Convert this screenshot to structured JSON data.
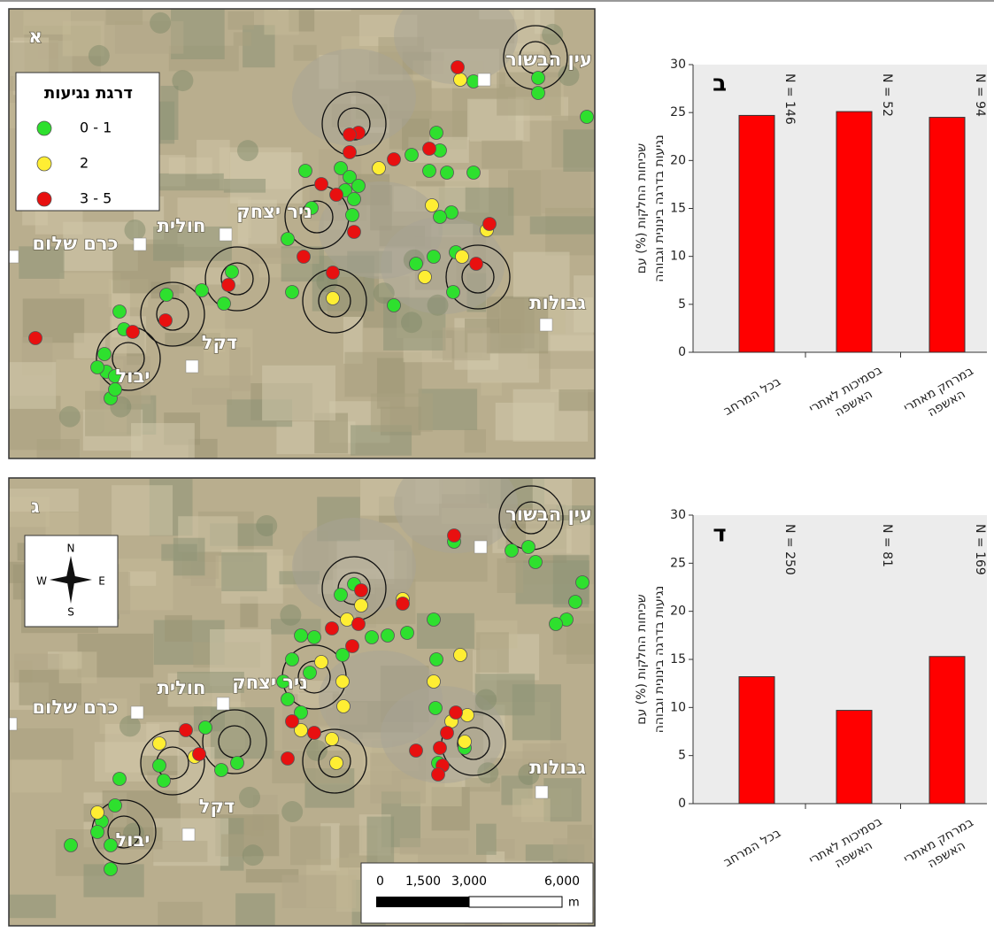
{
  "maps": [
    {
      "panel_label": "א",
      "legend": {
        "title": "דרגת נגיעות",
        "items": [
          {
            "label": "0 - 1",
            "color": "#2ee02e"
          },
          {
            "label": "2",
            "color": "#ffee33"
          },
          {
            "label": "3 - 5",
            "color": "#e81010"
          }
        ]
      },
      "places": [
        "עין הבשור",
        "ניר יצחק",
        "חולית",
        "כרם שלום",
        "גבולות",
        "דקל",
        "יבול"
      ]
    },
    {
      "panel_label": "ג",
      "compass": [
        "N",
        "W",
        "E",
        "S"
      ],
      "scale_bar": {
        "ticks": [
          "0",
          "1,500",
          "3,000",
          "6,000"
        ],
        "unit": "m"
      },
      "places": [
        "עין הבשור",
        "ניר יצחק",
        "חולית",
        "כרם שלום",
        "גבולות",
        "דקל",
        "יבול"
      ]
    }
  ],
  "chart_data": [
    {
      "type": "bar",
      "panel_label": "ב",
      "y_label": "שכיחות החלקות (%) עם\nנגיעות בדרגה בינונית וגבוהה",
      "categories": [
        "בכל המרחב",
        "בסמיכות לאתרי\nהאשפה",
        "במרחק מאתרי\nהאשפה"
      ],
      "values": [
        24.7,
        25.1,
        24.5
      ],
      "annotations": [
        "N = 146",
        "N = 52",
        "N = 94"
      ],
      "color": "#ff0000",
      "ylim": [
        0,
        30
      ],
      "yticks": [
        0,
        5,
        10,
        15,
        20,
        25,
        30
      ]
    },
    {
      "type": "bar",
      "panel_label": "ד",
      "y_label": "שכיחות החלקות (%) עם\nנגיעות בדרגה בינונית וגבוהה",
      "categories": [
        "בכל המרחב",
        "בסמיכות לאתרי\nהאשפה",
        "במרחק מאתרי\nהאשפה"
      ],
      "values": [
        13.2,
        9.7,
        15.3
      ],
      "annotations": [
        "N = 250",
        "N = 81",
        "N = 169"
      ],
      "color": "#ff0000",
      "ylim": [
        0,
        30
      ],
      "yticks": [
        0,
        5,
        10,
        15,
        20,
        25,
        30
      ]
    }
  ]
}
